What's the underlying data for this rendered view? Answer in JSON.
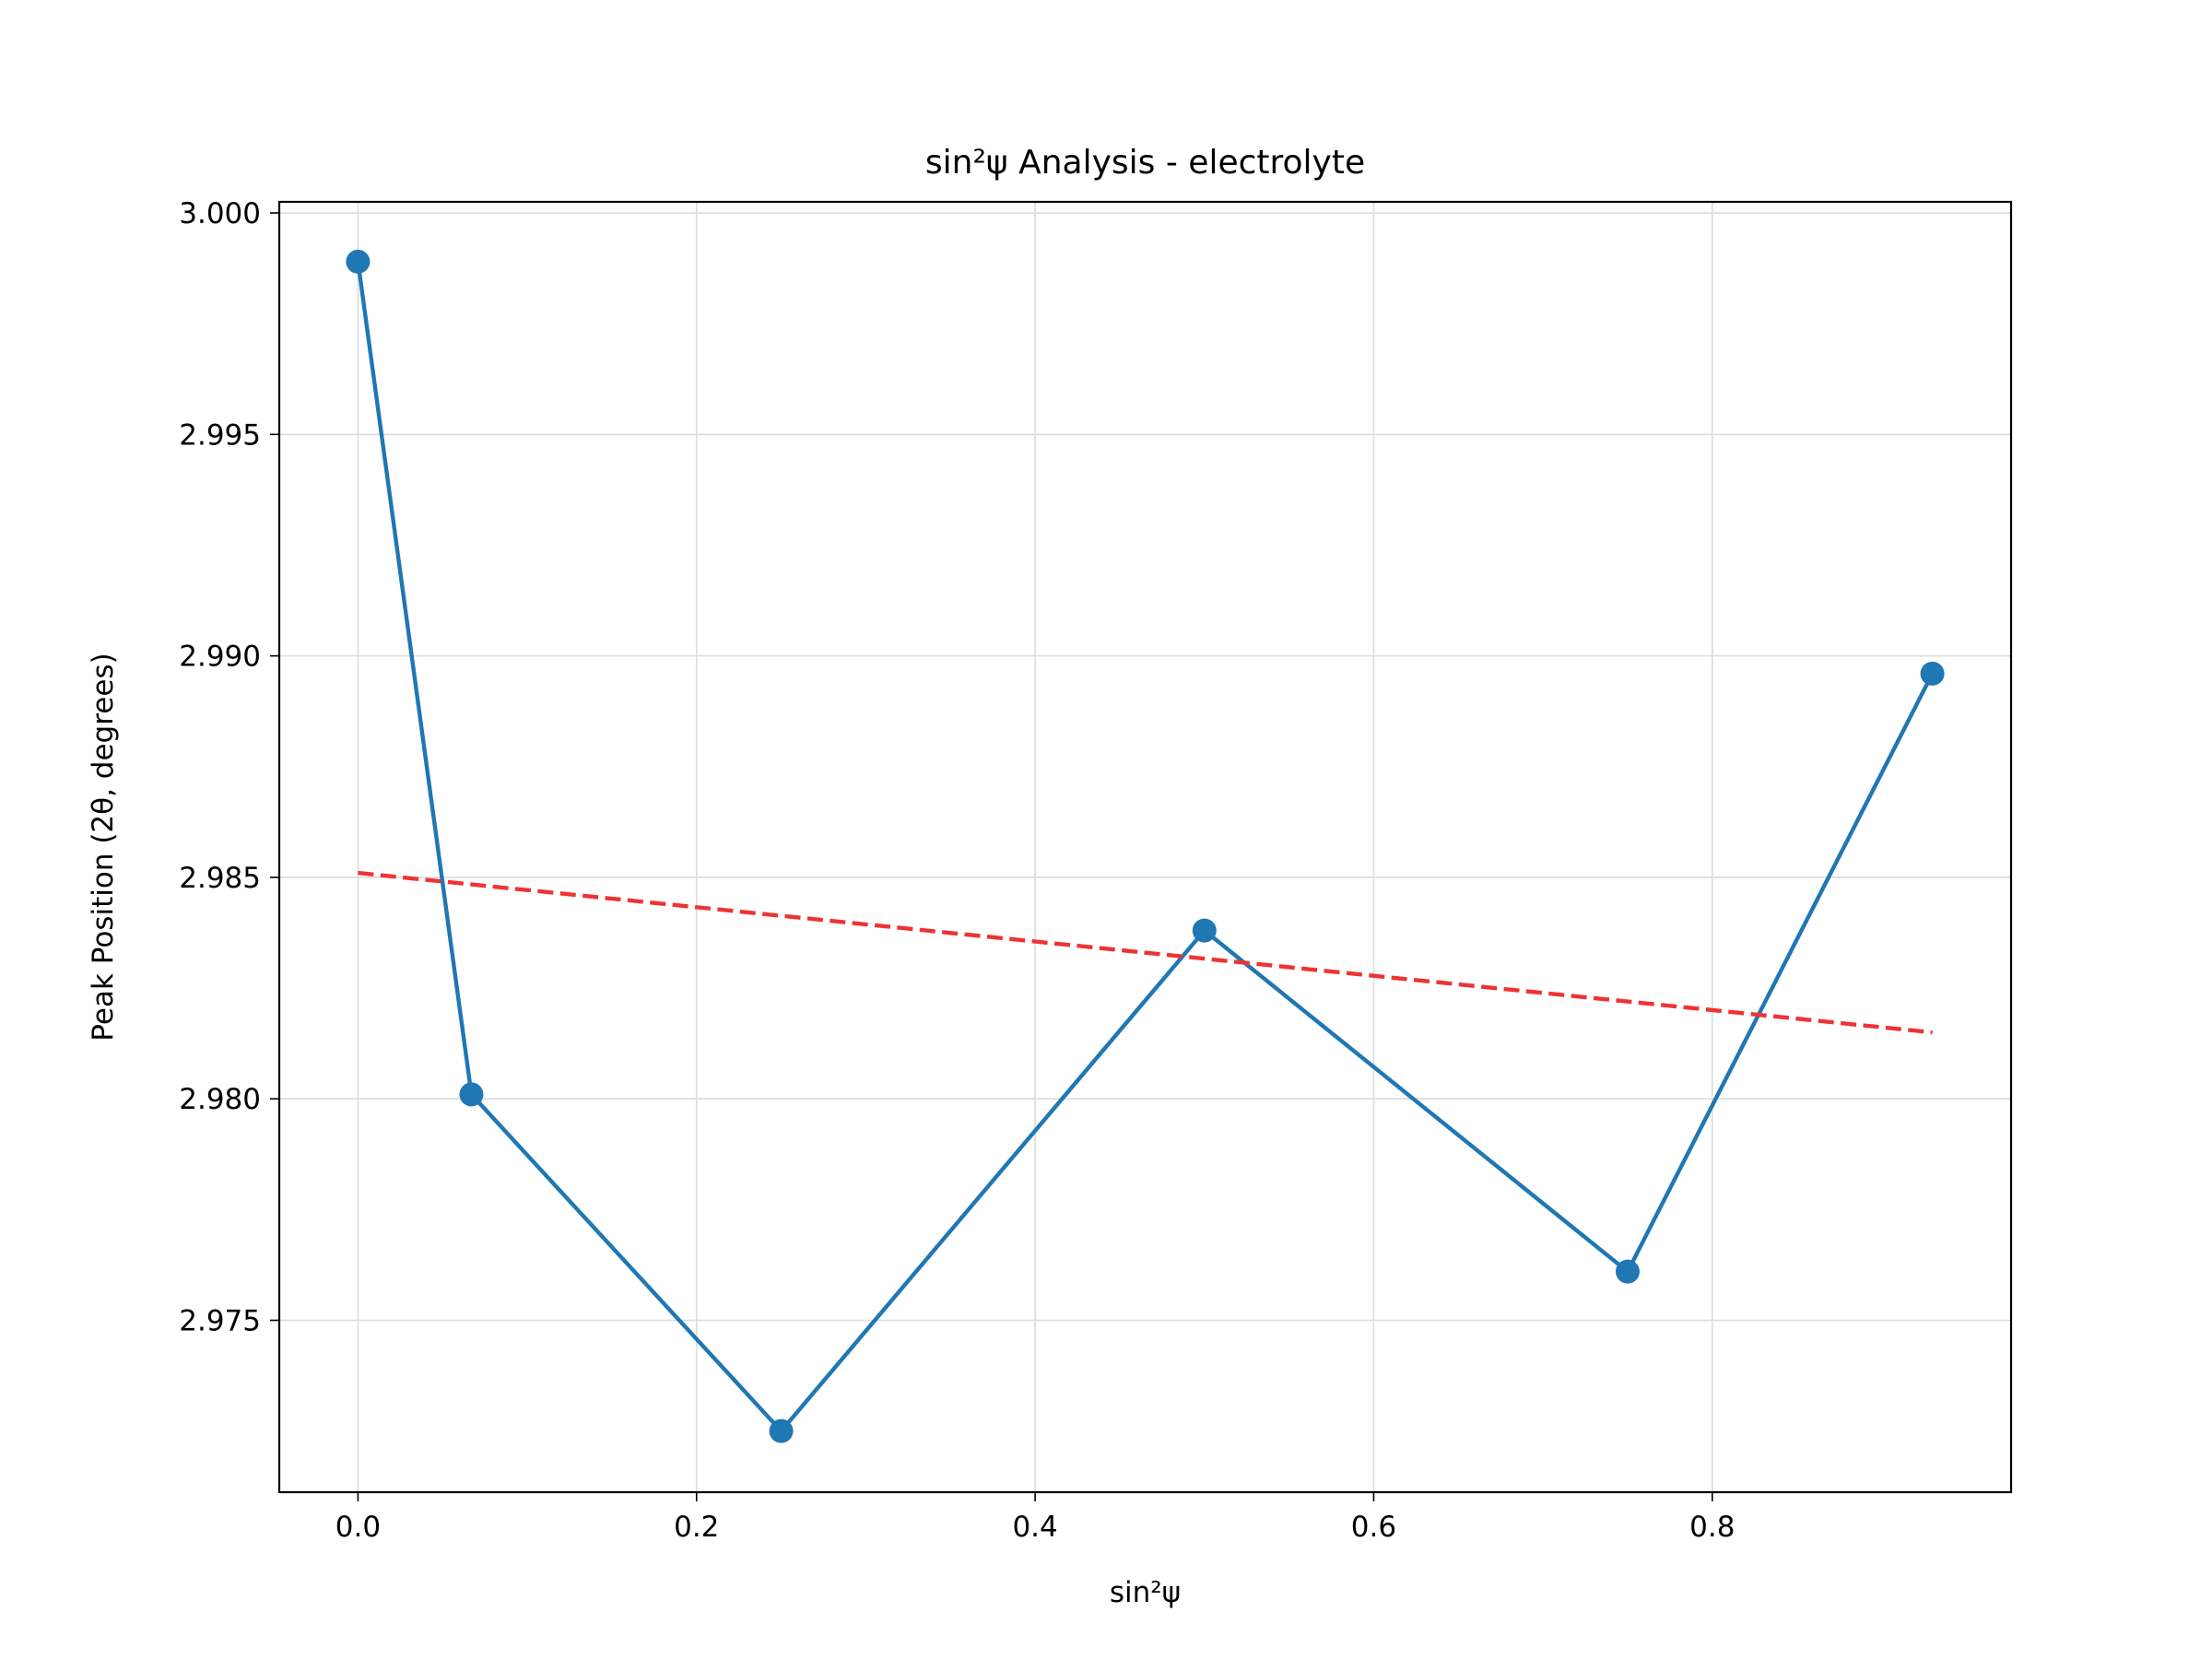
{
  "chart_data": {
    "type": "line",
    "title": "sin²ψ Analysis - electrolyte",
    "xlabel": "sin²ψ",
    "ylabel": "Peak Position (2θ, degrees)",
    "xlim": [
      -0.0465,
      0.9765
    ],
    "ylim": [
      2.97112,
      3.00025
    ],
    "x_ticks": [
      0.0,
      0.2,
      0.4,
      0.6,
      0.8
    ],
    "x_tick_labels": [
      "0.0",
      "0.2",
      "0.4",
      "0.6",
      "0.8"
    ],
    "y_ticks": [
      2.975,
      2.98,
      2.985,
      2.99,
      2.995,
      3.0
    ],
    "y_tick_labels": [
      "2.975",
      "2.980",
      "2.985",
      "2.990",
      "2.995",
      "3.000"
    ],
    "grid": true,
    "series": [
      {
        "style": "line-marker",
        "color": "#1f77b4",
        "x": [
          0.0,
          0.067,
          0.25,
          0.5,
          0.75,
          0.93
        ],
        "y": [
          2.9989,
          2.9801,
          2.9725,
          2.9838,
          2.9761,
          2.9896
        ]
      },
      {
        "style": "dashed",
        "color": "#ee3333",
        "x": [
          0.0,
          0.93
        ],
        "y": [
          2.9851,
          2.9815
        ]
      }
    ]
  }
}
